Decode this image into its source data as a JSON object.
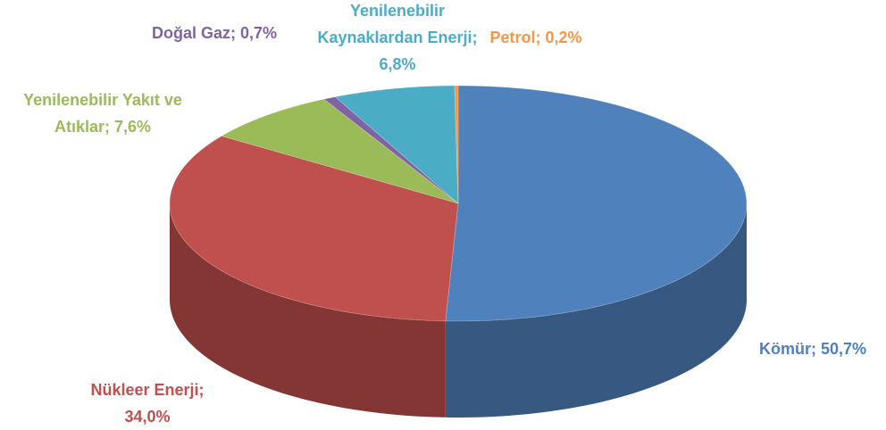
{
  "chart_data": {
    "type": "pie",
    "values": [
      50.7,
      34.0,
      7.6,
      0.7,
      6.8,
      0.2
    ],
    "value_labels": [
      "Kömür; 50,7%",
      "Nükleer Enerji; 34,0%",
      "Yenilenebilir Yakıt ve Atıklar; 7,6%",
      "Doğal Gaz; 0,7%",
      "Yenilenebilir Kaynaklardan Enerji; 6,8%",
      "Petrol; 0,2%"
    ],
    "colors": [
      "#4f81bd",
      "#c0504d",
      "#9bbb59",
      "#8064a2",
      "#4bacc6",
      "#f79646"
    ]
  }
}
